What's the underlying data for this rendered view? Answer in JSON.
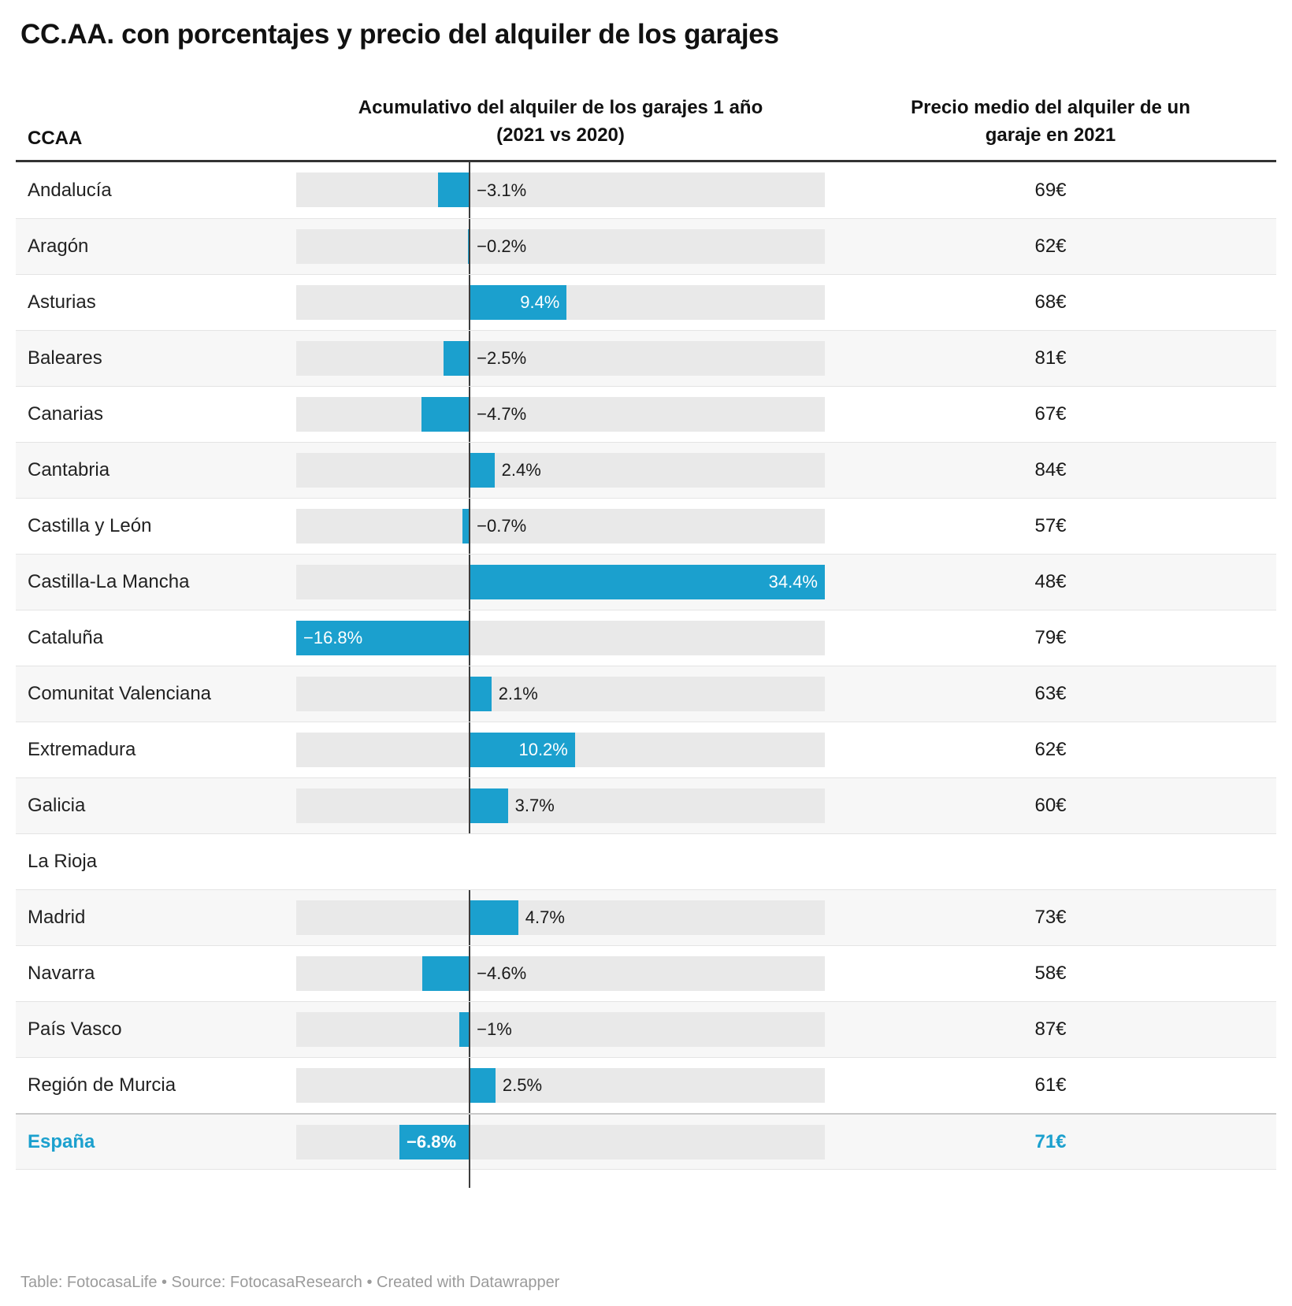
{
  "title": "CC.AA. con porcentajes y precio del alquiler de los garajes",
  "columns": {
    "ccaa": "CCAA",
    "bar_line1": "Acumulativo del alquiler de los garajes 1 año",
    "bar_line2": "(2021 vs 2020)",
    "price_line1": "Precio medio del alquiler de un",
    "price_line2": "garaje en 2021"
  },
  "colors": {
    "bar": "#1ba0ce",
    "accent": "#1ba0ce",
    "track": "#e9e9e9",
    "row_alt": "#f7f7f7",
    "baseline": "#3d3d3d"
  },
  "rows": [
    {
      "name": "Andalucía",
      "pct": -3.1,
      "pct_label": "−3.1%",
      "price": "69€",
      "highlight": false
    },
    {
      "name": "Aragón",
      "pct": -0.2,
      "pct_label": "−0.2%",
      "price": "62€",
      "highlight": false
    },
    {
      "name": "Asturias",
      "pct": 9.4,
      "pct_label": "9.4%",
      "price": "68€",
      "highlight": false
    },
    {
      "name": "Baleares",
      "pct": -2.5,
      "pct_label": "−2.5%",
      "price": "81€",
      "highlight": false
    },
    {
      "name": "Canarias",
      "pct": -4.7,
      "pct_label": "−4.7%",
      "price": "67€",
      "highlight": false
    },
    {
      "name": "Cantabria",
      "pct": 2.4,
      "pct_label": "2.4%",
      "price": "84€",
      "highlight": false
    },
    {
      "name": "Castilla y León",
      "pct": -0.7,
      "pct_label": "−0.7%",
      "price": "57€",
      "highlight": false
    },
    {
      "name": "Castilla-La Mancha",
      "pct": 34.4,
      "pct_label": "34.4%",
      "price": "48€",
      "highlight": false
    },
    {
      "name": "Cataluña",
      "pct": -16.8,
      "pct_label": "−16.8%",
      "price": "79€",
      "highlight": false
    },
    {
      "name": "Comunitat Valenciana",
      "pct": 2.1,
      "pct_label": "2.1%",
      "price": "63€",
      "highlight": false
    },
    {
      "name": "Extremadura",
      "pct": 10.2,
      "pct_label": "10.2%",
      "price": "62€",
      "highlight": false
    },
    {
      "name": "Galicia",
      "pct": 3.7,
      "pct_label": "3.7%",
      "price": "60€",
      "highlight": false
    },
    {
      "name": "La Rioja",
      "pct": null,
      "pct_label": "",
      "price": "",
      "highlight": false
    },
    {
      "name": "Madrid",
      "pct": 4.7,
      "pct_label": "4.7%",
      "price": "73€",
      "highlight": false
    },
    {
      "name": "Navarra",
      "pct": -4.6,
      "pct_label": "−4.6%",
      "price": "58€",
      "highlight": false
    },
    {
      "name": "País Vasco",
      "pct": -1,
      "pct_label": "−1%",
      "price": "87€",
      "highlight": false
    },
    {
      "name": "Región de Murcia",
      "pct": 2.5,
      "pct_label": "2.5%",
      "price": "61€",
      "highlight": false
    },
    {
      "name": "España",
      "pct": -6.8,
      "pct_label": "−6.8%",
      "price": "71€",
      "highlight": true
    }
  ],
  "chart_data": {
    "type": "bar",
    "title": "CC.AA. con porcentajes y precio del alquiler de los garajes",
    "categories": [
      "Andalucía",
      "Aragón",
      "Asturias",
      "Baleares",
      "Canarias",
      "Cantabria",
      "Castilla y León",
      "Castilla-La Mancha",
      "Cataluña",
      "Comunitat Valenciana",
      "Extremadura",
      "Galicia",
      "La Rioja",
      "Madrid",
      "Navarra",
      "País Vasco",
      "Región de Murcia",
      "España"
    ],
    "series": [
      {
        "name": "Acumulativo del alquiler de los garajes 1 año (2021 vs 2020) [%]",
        "values": [
          -3.1,
          -0.2,
          9.4,
          -2.5,
          -4.7,
          2.4,
          -0.7,
          34.4,
          -16.8,
          2.1,
          10.2,
          3.7,
          null,
          4.7,
          -4.6,
          -1,
          2.5,
          -6.8
        ]
      },
      {
        "name": "Precio medio del alquiler de un garaje en 2021 [€]",
        "values": [
          69,
          62,
          68,
          81,
          67,
          84,
          57,
          48,
          79,
          63,
          62,
          60,
          null,
          73,
          58,
          87,
          61,
          71
        ]
      }
    ],
    "xlabel": "",
    "ylabel": "",
    "xlim": [
      -16.8,
      34.4
    ],
    "orientation": "horizontal",
    "grid": false,
    "legend_position": "none"
  },
  "footer": "Table: FotocasaLife • Source: FotocasaResearch • Created with Datawrapper"
}
